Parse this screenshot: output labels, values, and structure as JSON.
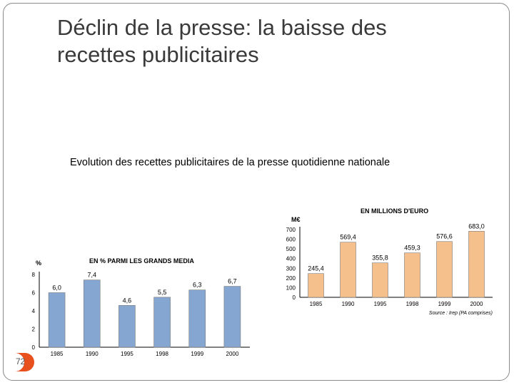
{
  "slide": {
    "title_line1": "Déclin de la presse: la baisse des",
    "title_line2": "recettes publicitaires",
    "subtitle": "Evolution des recettes publicitaires de la presse quotidienne nationale",
    "page_number": "72"
  },
  "colors": {
    "bar_blue": "#86a6d2",
    "bar_orange": "#f6c08c",
    "accent": "#e8501e"
  },
  "chart_data": [
    {
      "type": "bar",
      "title": "EN % PARMI LES GRANDS MEDIA",
      "ylabel": "%",
      "categories": [
        "1985",
        "1990",
        "1995",
        "1998",
        "1999",
        "2000"
      ],
      "values": [
        6.0,
        7.4,
        4.6,
        5.5,
        6.3,
        6.7
      ],
      "value_labels": [
        "6,0",
        "7,4",
        "4,6",
        "5,5",
        "6,3",
        "6,7"
      ],
      "ylim": [
        0,
        8
      ],
      "yticks": [
        "0",
        "2",
        "4",
        "6",
        "8"
      ],
      "color": "#86a6d2"
    },
    {
      "type": "bar",
      "title": "EN MILLIONS D'EURO",
      "ylabel": "M€",
      "categories": [
        "1985",
        "1990",
        "1995",
        "1998",
        "1999",
        "2000"
      ],
      "values": [
        245.4,
        569.4,
        355.8,
        459.3,
        576.6,
        683.0
      ],
      "value_labels": [
        "245,4",
        "569,4",
        "355,8",
        "459,3",
        "576,6",
        "683,0"
      ],
      "ylim": [
        0,
        700
      ],
      "yticks": [
        "0",
        "100",
        "200",
        "300",
        "400",
        "500",
        "600",
        "700"
      ],
      "source": "Source : Irep (PA comprises)",
      "color": "#f6c08c"
    }
  ]
}
